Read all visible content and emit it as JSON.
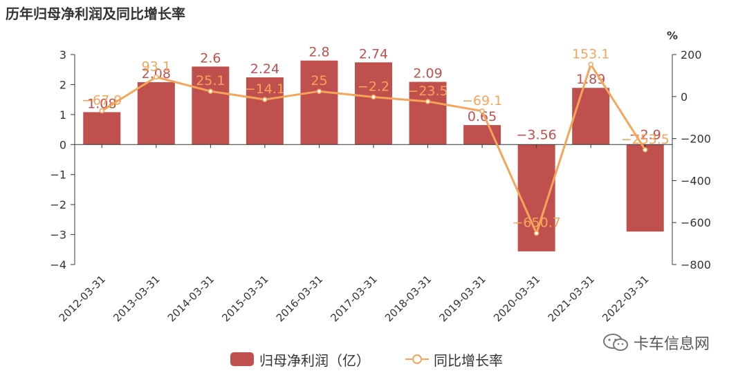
{
  "chart_data": {
    "type": "bar",
    "title": "历年归母净利润及同比增长率",
    "categories": [
      "2012-03-31",
      "2013-03-31",
      "2014-03-31",
      "2015-03-31",
      "2016-03-31",
      "2017-03-31",
      "2018-03-31",
      "2019-03-31",
      "2020-03-31",
      "2021-03-31",
      "2022-03-31"
    ],
    "series": [
      {
        "name": "归母净利润（亿）",
        "type": "bar",
        "axis": "left",
        "values": [
          1.08,
          2.08,
          2.6,
          2.24,
          2.8,
          2.74,
          2.09,
          0.65,
          -3.56,
          1.89,
          -2.9
        ],
        "labels": [
          "1.08",
          "2.08",
          "2.6",
          "2.24",
          "2.8",
          "2.74",
          "2.09",
          "0.65",
          "−3.56",
          "1.89",
          "−2.9"
        ]
      },
      {
        "name": "同比增长率",
        "type": "line",
        "axis": "right",
        "values": [
          -67.9,
          93.1,
          25.1,
          -14.1,
          25,
          -2.2,
          -23.5,
          -69.1,
          -650.7,
          153.1,
          -253.5
        ],
        "labels": [
          "−67.9",
          "93.1",
          "25.1",
          "−14.1",
          "25",
          "−2.2",
          "−23.5",
          "−69.1",
          "−650.7",
          "153.1",
          "−253.5"
        ]
      }
    ],
    "y_left": {
      "ylim": [
        -4,
        3
      ],
      "ticks": [
        "−4",
        "−3",
        "−2",
        "−1",
        "0",
        "1",
        "2",
        "3"
      ]
    },
    "y_right": {
      "ylim": [
        -800,
        200
      ],
      "unit": "%",
      "ticks": [
        "−800",
        "−600",
        "−400",
        "−200",
        "0",
        "200"
      ]
    },
    "colors": {
      "bar": "#c0504d",
      "line": "#f5a55a",
      "bar_label": "#c0504d",
      "line_label": "#f5a55a",
      "axis": "#333333"
    },
    "legend_position": "bottom-center",
    "grid": false
  },
  "watermark": {
    "text": "卡车信息网",
    "icon": "wechat-icon"
  }
}
